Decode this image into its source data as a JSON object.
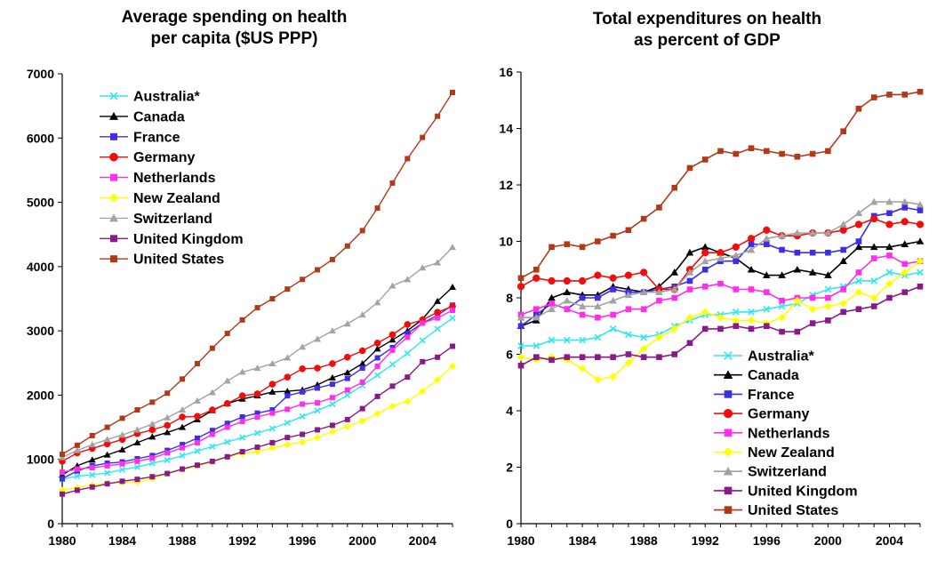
{
  "chart_data": [
    {
      "type": "line",
      "title": [
        "Average spending on health",
        "per capita ($US PPP)"
      ],
      "xlabel": "",
      "ylabel": "",
      "xlim": [
        1980,
        2006
      ],
      "ylim": [
        0,
        7000
      ],
      "x_ticks": [
        "1980",
        "1984",
        "1988",
        "1992",
        "1996",
        "2000",
        "2004"
      ],
      "y_ticks": [
        "0",
        "1000",
        "2000",
        "3000",
        "4000",
        "5000",
        "6000",
        "7000"
      ],
      "grid": false,
      "legend_position": "top-left",
      "x": [
        1980,
        1981,
        1982,
        1983,
        1984,
        1985,
        1986,
        1987,
        1988,
        1989,
        1990,
        1991,
        1992,
        1993,
        1994,
        1995,
        1996,
        1997,
        1998,
        1999,
        2000,
        2001,
        2002,
        2003,
        2004,
        2005,
        2006
      ],
      "series": [
        {
          "name": "Australia*",
          "color": "#33e6f0",
          "marker": "x",
          "values": [
            690,
            740,
            760,
            790,
            840,
            880,
            940,
            990,
            1060,
            1130,
            1200,
            1270,
            1340,
            1410,
            1480,
            1570,
            1670,
            1760,
            1860,
            2000,
            2150,
            2310,
            2480,
            2650,
            2850,
            3030,
            3200
          ]
        },
        {
          "name": "Canada",
          "color": "#000000",
          "marker": "triangle",
          "values": [
            760,
            900,
            990,
            1070,
            1150,
            1260,
            1350,
            1420,
            1500,
            1620,
            1760,
            1870,
            1940,
            1990,
            2050,
            2060,
            2080,
            2160,
            2270,
            2350,
            2490,
            2720,
            2860,
            3000,
            3180,
            3460,
            3680
          ]
        },
        {
          "name": "France",
          "color": "#3b2ee6",
          "marker": "square",
          "values": [
            700,
            820,
            900,
            940,
            960,
            1010,
            1060,
            1140,
            1230,
            1330,
            1450,
            1560,
            1660,
            1720,
            1770,
            1990,
            2050,
            2110,
            2170,
            2260,
            2420,
            2580,
            2740,
            2960,
            3120,
            3240,
            3400
          ]
        },
        {
          "name": "Germany",
          "color": "#f20c0c",
          "marker": "circle",
          "values": [
            970,
            1100,
            1170,
            1240,
            1310,
            1400,
            1460,
            1530,
            1660,
            1670,
            1770,
            1870,
            1990,
            2020,
            2170,
            2280,
            2410,
            2420,
            2490,
            2590,
            2690,
            2810,
            2940,
            3100,
            3170,
            3290,
            3380
          ]
        },
        {
          "name": "Netherlands",
          "color": "#ff2eea",
          "marker": "square",
          "values": [
            800,
            850,
            870,
            900,
            930,
            970,
            1020,
            1100,
            1180,
            1260,
            1390,
            1500,
            1590,
            1660,
            1720,
            1780,
            1860,
            1880,
            1960,
            2080,
            2200,
            2450,
            2700,
            2900,
            3120,
            3200,
            3320
          ]
        },
        {
          "name": "New Zealand",
          "color": "#ffff00",
          "marker": "diamond",
          "values": [
            520,
            560,
            600,
            630,
            640,
            650,
            700,
            780,
            840,
            900,
            960,
            1040,
            1090,
            1120,
            1180,
            1230,
            1270,
            1340,
            1430,
            1510,
            1600,
            1710,
            1830,
            1900,
            2060,
            2240,
            2450
          ]
        },
        {
          "name": "Switzerland",
          "color": "#a3a3a3",
          "marker": "triangle",
          "values": [
            1030,
            1140,
            1230,
            1310,
            1380,
            1460,
            1550,
            1650,
            1770,
            1910,
            2040,
            2220,
            2360,
            2420,
            2490,
            2580,
            2750,
            2870,
            3000,
            3110,
            3250,
            3440,
            3700,
            3800,
            3980,
            4060,
            4300
          ]
        },
        {
          "name": "United Kingdom",
          "color": "#8a1a8a",
          "marker": "square",
          "values": [
            460,
            520,
            570,
            620,
            660,
            690,
            730,
            780,
            850,
            910,
            970,
            1040,
            1120,
            1190,
            1260,
            1340,
            1390,
            1460,
            1530,
            1620,
            1790,
            1980,
            2140,
            2280,
            2520,
            2590,
            2760
          ]
        },
        {
          "name": "United States",
          "color": "#b03a18",
          "marker": "square",
          "values": [
            1080,
            1220,
            1370,
            1500,
            1640,
            1770,
            1890,
            2030,
            2250,
            2490,
            2730,
            2960,
            3170,
            3360,
            3500,
            3650,
            3800,
            3950,
            4110,
            4320,
            4560,
            4910,
            5300,
            5680,
            6010,
            6340,
            6710
          ]
        }
      ]
    },
    {
      "type": "line",
      "title": [
        "Total expenditures on health",
        "as percent of GDP"
      ],
      "xlabel": "",
      "ylabel": "",
      "xlim": [
        1980,
        2006
      ],
      "ylim": [
        0,
        16
      ],
      "x_ticks": [
        "1980",
        "1984",
        "1988",
        "1992",
        "1996",
        "2000",
        "2004"
      ],
      "y_ticks": [
        "0",
        "2",
        "4",
        "6",
        "8",
        "10",
        "12",
        "14",
        "16"
      ],
      "grid": false,
      "legend_position": "bottom-center",
      "x": [
        1980,
        1981,
        1982,
        1983,
        1984,
        1985,
        1986,
        1987,
        1988,
        1989,
        1990,
        1991,
        1992,
        1993,
        1994,
        1995,
        1996,
        1997,
        1998,
        1999,
        2000,
        2001,
        2002,
        2003,
        2004,
        2005,
        2006
      ],
      "series": [
        {
          "name": "Australia*",
          "color": "#33e6f0",
          "marker": "x",
          "values": [
            6.3,
            6.3,
            6.5,
            6.5,
            6.5,
            6.6,
            6.9,
            6.7,
            6.6,
            6.7,
            7.0,
            7.2,
            7.4,
            7.4,
            7.5,
            7.5,
            7.6,
            7.7,
            7.8,
            8.1,
            8.3,
            8.4,
            8.6,
            8.6,
            8.9,
            8.8,
            8.9
          ]
        },
        {
          "name": "Canada",
          "color": "#000000",
          "marker": "triangle",
          "values": [
            7.0,
            7.2,
            8.0,
            8.2,
            8.1,
            8.1,
            8.4,
            8.3,
            8.2,
            8.4,
            8.9,
            9.6,
            9.8,
            9.6,
            9.4,
            9.0,
            8.8,
            8.8,
            9.0,
            8.9,
            8.8,
            9.3,
            9.8,
            9.8,
            9.8,
            9.9,
            10.0
          ]
        },
        {
          "name": "France",
          "color": "#3b2ee6",
          "marker": "square",
          "values": [
            7.0,
            7.4,
            7.8,
            7.6,
            8.0,
            8.0,
            8.3,
            8.2,
            8.2,
            8.3,
            8.4,
            8.6,
            9.0,
            9.3,
            9.3,
            9.9,
            9.9,
            9.7,
            9.6,
            9.6,
            9.6,
            9.7,
            10.0,
            10.9,
            11.0,
            11.2,
            11.1
          ]
        },
        {
          "name": "Germany",
          "color": "#f20c0c",
          "marker": "circle",
          "values": [
            8.4,
            8.7,
            8.6,
            8.6,
            8.6,
            8.8,
            8.7,
            8.8,
            8.9,
            8.3,
            8.3,
            9.0,
            9.6,
            9.6,
            9.8,
            10.1,
            10.4,
            10.2,
            10.2,
            10.3,
            10.3,
            10.4,
            10.6,
            10.8,
            10.6,
            10.7,
            10.6
          ]
        },
        {
          "name": "Netherlands",
          "color": "#ff2eea",
          "marker": "square",
          "values": [
            7.4,
            7.6,
            7.8,
            7.6,
            7.4,
            7.3,
            7.4,
            7.6,
            7.6,
            7.9,
            8.0,
            8.3,
            8.4,
            8.5,
            8.3,
            8.3,
            8.2,
            7.9,
            8.0,
            8.0,
            8.0,
            8.3,
            8.9,
            9.4,
            9.5,
            9.2,
            9.3
          ]
        },
        {
          "name": "New Zealand",
          "color": "#ffff00",
          "marker": "diamond",
          "values": [
            5.9,
            5.8,
            5.9,
            5.8,
            5.5,
            5.1,
            5.2,
            5.7,
            6.2,
            6.6,
            6.9,
            7.3,
            7.5,
            7.3,
            7.2,
            7.2,
            7.1,
            7.3,
            7.9,
            7.6,
            7.7,
            7.8,
            8.2,
            8.0,
            8.5,
            8.9,
            9.3
          ]
        },
        {
          "name": "Switzerland",
          "color": "#a3a3a3",
          "marker": "triangle",
          "values": [
            7.3,
            7.3,
            7.6,
            7.9,
            7.7,
            7.7,
            7.9,
            8.1,
            8.2,
            8.2,
            8.3,
            8.9,
            9.3,
            9.4,
            9.5,
            9.7,
            10.1,
            10.2,
            10.3,
            10.3,
            10.3,
            10.6,
            11.0,
            11.4,
            11.4,
            11.4,
            11.3
          ]
        },
        {
          "name": "United Kingdom",
          "color": "#8a1a8a",
          "marker": "square",
          "values": [
            5.6,
            5.9,
            5.8,
            5.9,
            5.9,
            5.9,
            5.9,
            6.0,
            5.9,
            5.9,
            6.0,
            6.4,
            6.9,
            6.9,
            7.0,
            6.9,
            7.0,
            6.8,
            6.8,
            7.1,
            7.2,
            7.5,
            7.6,
            7.7,
            8.0,
            8.2,
            8.4
          ]
        },
        {
          "name": "United States",
          "color": "#b03a18",
          "marker": "square",
          "values": [
            8.7,
            9.0,
            9.8,
            9.9,
            9.8,
            10.0,
            10.2,
            10.4,
            10.8,
            11.2,
            11.9,
            12.6,
            12.9,
            13.2,
            13.1,
            13.3,
            13.2,
            13.1,
            13.0,
            13.1,
            13.2,
            13.9,
            14.7,
            15.1,
            15.2,
            15.2,
            15.3
          ]
        }
      ]
    }
  ]
}
